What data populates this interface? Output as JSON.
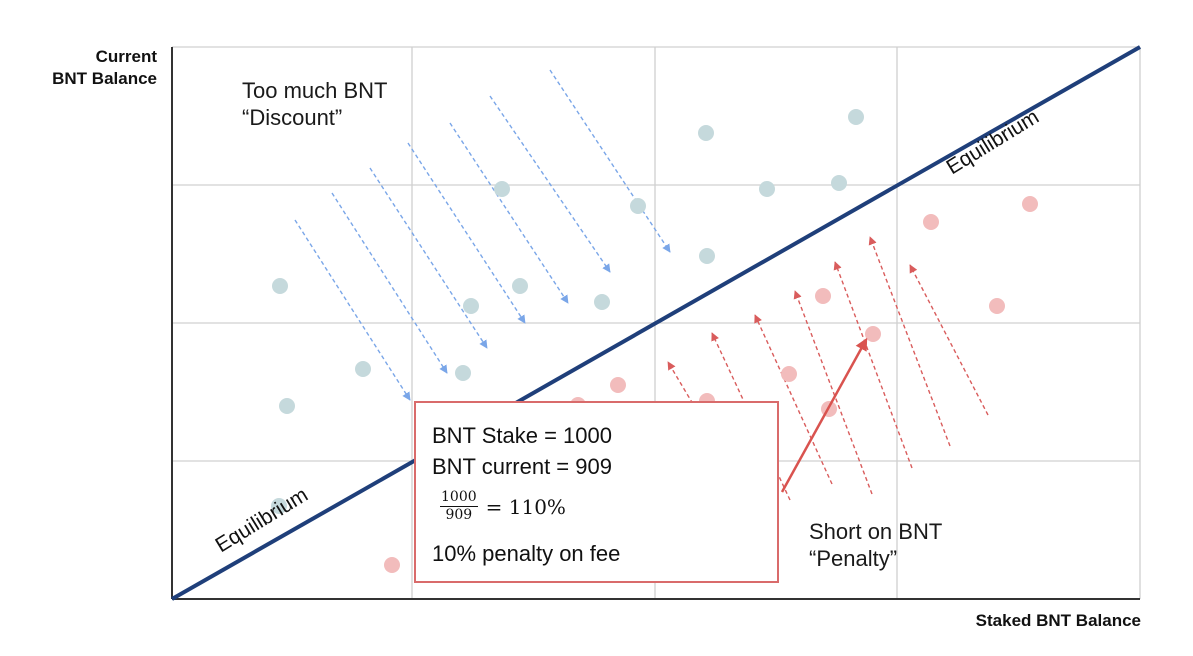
{
  "axes": {
    "y_label_lines": [
      "Current",
      "BNT Balance"
    ],
    "x_label": "Staked BNT Balance"
  },
  "labels": {
    "top_zone": [
      "Too much BNT",
      "“Discount”"
    ],
    "bottom_zone": [
      "Short on BNT",
      "“Penalty”"
    ],
    "equilibrium_upper": "Equilibrium",
    "equilibrium_lower": "Equilibrium"
  },
  "callout": {
    "stake_line": "BNT Stake = 1000",
    "current_line": "BNT current = 909",
    "ratio_numerator": "1000",
    "ratio_denominator": "909",
    "ratio_result": "= 110%",
    "penalty_line": "10% penalty on fee"
  },
  "colors": {
    "grid": "#d0d0d0",
    "axis": "#333333",
    "equilibrium_line": "#1f3f7a",
    "discount_dot": "#c5d9dc",
    "penalty_dot": "#f2bcbc",
    "discount_arrow": "#7aa6e8",
    "penalty_arrow": "#d95c5c",
    "callout_border": "#d96b6b"
  }
}
